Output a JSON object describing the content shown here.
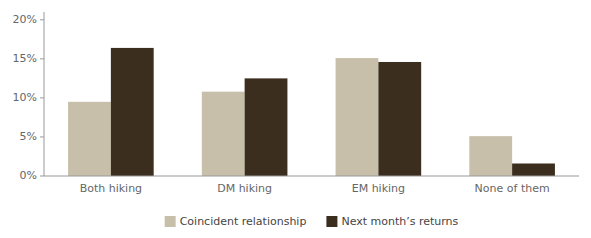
{
  "chart_data": {
    "type": "bar",
    "categories": [
      "Both hiking",
      "DM hiking",
      "EM hiking",
      "None of them"
    ],
    "series": [
      {
        "name": "Coincident relationship",
        "color": "#c8bfaa",
        "values": [
          9.5,
          10.8,
          15.1,
          5.1
        ]
      },
      {
        "name": "Next month’s returns",
        "color": "#3b2e1e",
        "values": [
          16.4,
          12.5,
          14.6,
          1.6
        ]
      }
    ],
    "ylim": [
      0,
      21
    ],
    "yticks": [
      {
        "value": 0,
        "label": "0%"
      },
      {
        "value": 5,
        "label": "5%"
      },
      {
        "value": 10,
        "label": "10%"
      },
      {
        "value": 15,
        "label": "15%"
      },
      {
        "value": 20,
        "label": "20%"
      }
    ],
    "grid": false,
    "legend": "bottom"
  }
}
